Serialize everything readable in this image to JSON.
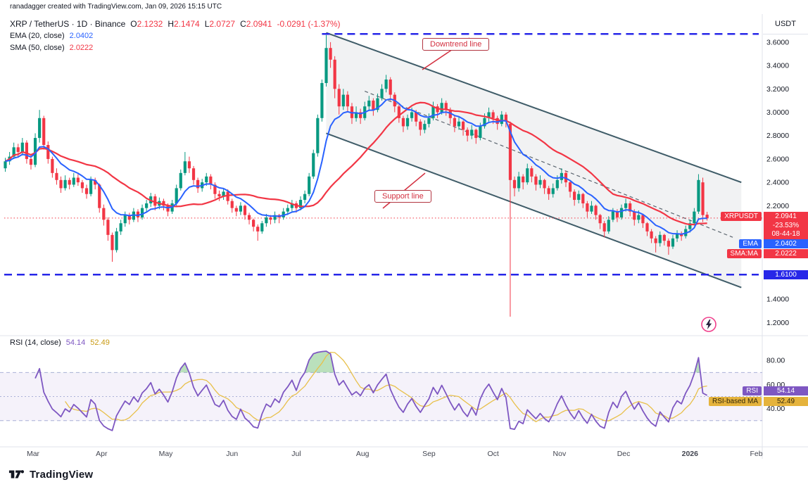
{
  "header": {
    "credit": "ranadagger created with TradingView.com, Jan 09, 2026 15:15 UTC"
  },
  "legend": {
    "symbol": "XRP / TetherUS · 1D · Binance",
    "ohlc": [
      {
        "k": "O",
        "v": "2.1232"
      },
      {
        "k": "H",
        "v": "2.1474"
      },
      {
        "k": "L",
        "v": "2.0727"
      },
      {
        "k": "C",
        "v": "2.0941"
      }
    ],
    "change": "-0.0291 (-1.37%)",
    "ema_label": "EMA (20, close)",
    "ema_value": "2.0402",
    "sma_label": "SMA (50, close)",
    "sma_value": "2.0222"
  },
  "rsi_legend": {
    "label": "RSI (14, close)",
    "v1": "54.14",
    "v2": "52.49"
  },
  "axis": {
    "currency": "USDT"
  },
  "badges": {
    "symbol": "XRPUSDT",
    "price": "2.0941",
    "change_pct": "-23.53%",
    "countdown": "08-44-18",
    "ema_label": "EMA",
    "ema": "2.0402",
    "sma_label": "SMA:MA",
    "sma": "2.0222",
    "level": "1.6100",
    "rsi_label": "RSI",
    "rsi": "54.14",
    "rsi_ma_label": "RSI-based MA",
    "rsi_ma": "52.49"
  },
  "annotations": {
    "downtrend": "Downtrend line",
    "support": "Support line"
  },
  "footer": {
    "brand": "TradingView"
  },
  "chart_data": {
    "type": "candlestick",
    "symbol": "XRPUSDT",
    "interval": "1D",
    "exchange": "Binance",
    "candles": [
      [
        2.52,
        2.61,
        2.49,
        2.58
      ],
      [
        2.58,
        2.66,
        2.55,
        2.62
      ],
      [
        2.62,
        2.74,
        2.6,
        2.7
      ],
      [
        2.7,
        2.73,
        2.61,
        2.66
      ],
      [
        2.66,
        2.78,
        2.63,
        2.74
      ],
      [
        2.74,
        2.76,
        2.56,
        2.6
      ],
      [
        2.6,
        2.64,
        2.51,
        2.55
      ],
      [
        2.55,
        2.82,
        2.53,
        2.78
      ],
      [
        2.78,
        3.02,
        2.74,
        2.95
      ],
      [
        2.95,
        2.97,
        2.68,
        2.72
      ],
      [
        2.72,
        2.75,
        2.56,
        2.6
      ],
      [
        2.6,
        2.62,
        2.44,
        2.48
      ],
      [
        2.48,
        2.52,
        2.38,
        2.42
      ],
      [
        2.42,
        2.45,
        2.31,
        2.35
      ],
      [
        2.35,
        2.46,
        2.33,
        2.42
      ],
      [
        2.42,
        2.44,
        2.34,
        2.38
      ],
      [
        2.38,
        2.48,
        2.36,
        2.44
      ],
      [
        2.44,
        2.47,
        2.37,
        2.4
      ],
      [
        2.4,
        2.42,
        2.31,
        2.35
      ],
      [
        2.35,
        2.38,
        2.26,
        2.3
      ],
      [
        2.3,
        2.45,
        2.28,
        2.42
      ],
      [
        2.42,
        2.44,
        2.34,
        2.38
      ],
      [
        2.38,
        2.39,
        2.14,
        2.18
      ],
      [
        2.18,
        2.21,
        2.03,
        2.08
      ],
      [
        2.08,
        2.1,
        1.9,
        1.95
      ],
      [
        1.95,
        1.97,
        1.72,
        1.82
      ],
      [
        1.82,
        2.01,
        1.8,
        1.98
      ],
      [
        1.98,
        2.08,
        1.95,
        2.05
      ],
      [
        2.05,
        2.15,
        2.02,
        2.12
      ],
      [
        2.12,
        2.14,
        2.04,
        2.08
      ],
      [
        2.08,
        2.18,
        2.06,
        2.15
      ],
      [
        2.15,
        2.17,
        2.06,
        2.1
      ],
      [
        2.1,
        2.21,
        2.08,
        2.18
      ],
      [
        2.18,
        2.25,
        2.15,
        2.22
      ],
      [
        2.22,
        2.31,
        2.19,
        2.28
      ],
      [
        2.28,
        2.3,
        2.16,
        2.2
      ],
      [
        2.2,
        2.27,
        2.17,
        2.24
      ],
      [
        2.24,
        2.26,
        2.16,
        2.2
      ],
      [
        2.2,
        2.22,
        2.11,
        2.15
      ],
      [
        2.15,
        2.25,
        2.13,
        2.22
      ],
      [
        2.22,
        2.38,
        2.2,
        2.35
      ],
      [
        2.35,
        2.51,
        2.33,
        2.48
      ],
      [
        2.48,
        2.66,
        2.46,
        2.58
      ],
      [
        2.58,
        2.62,
        2.48,
        2.52
      ],
      [
        2.52,
        2.54,
        2.38,
        2.42
      ],
      [
        2.42,
        2.44,
        2.31,
        2.35
      ],
      [
        2.35,
        2.43,
        2.32,
        2.4
      ],
      [
        2.4,
        2.48,
        2.37,
        2.45
      ],
      [
        2.45,
        2.47,
        2.34,
        2.38
      ],
      [
        2.38,
        2.4,
        2.26,
        2.3
      ],
      [
        2.3,
        2.33,
        2.24,
        2.28
      ],
      [
        2.28,
        2.35,
        2.25,
        2.32
      ],
      [
        2.32,
        2.34,
        2.21,
        2.24
      ],
      [
        2.24,
        2.26,
        2.14,
        2.18
      ],
      [
        2.18,
        2.2,
        2.11,
        2.15
      ],
      [
        2.15,
        2.23,
        2.12,
        2.2
      ],
      [
        2.2,
        2.21,
        2.08,
        2.12
      ],
      [
        2.12,
        2.14,
        2.04,
        2.08
      ],
      [
        2.08,
        2.09,
        1.98,
        2.02
      ],
      [
        2.02,
        2.04,
        1.9,
        1.98
      ],
      [
        1.98,
        2.07,
        1.96,
        2.05
      ],
      [
        2.05,
        2.13,
        2.02,
        2.1
      ],
      [
        2.1,
        2.12,
        2.04,
        2.08
      ],
      [
        2.08,
        2.15,
        2.05,
        2.12
      ],
      [
        2.12,
        2.13,
        2.05,
        2.1
      ],
      [
        2.1,
        2.18,
        2.08,
        2.15
      ],
      [
        2.15,
        2.21,
        2.12,
        2.18
      ],
      [
        2.18,
        2.25,
        2.15,
        2.22
      ],
      [
        2.22,
        2.24,
        2.14,
        2.18
      ],
      [
        2.18,
        2.28,
        2.16,
        2.25
      ],
      [
        2.25,
        2.33,
        2.22,
        2.3
      ],
      [
        2.3,
        2.48,
        2.28,
        2.45
      ],
      [
        2.45,
        2.68,
        2.43,
        2.65
      ],
      [
        2.65,
        2.98,
        2.62,
        2.95
      ],
      [
        2.95,
        3.28,
        2.92,
        3.25
      ],
      [
        3.25,
        3.66,
        3.22,
        3.55
      ],
      [
        3.55,
        3.6,
        3.38,
        3.45
      ],
      [
        3.45,
        3.48,
        3.12,
        3.2
      ],
      [
        3.2,
        3.24,
        2.98,
        3.05
      ],
      [
        3.05,
        3.2,
        3.02,
        3.15
      ],
      [
        3.15,
        3.18,
        3.0,
        3.05
      ],
      [
        3.05,
        3.08,
        2.9,
        2.95
      ],
      [
        2.95,
        3.05,
        2.92,
        3.0
      ],
      [
        3.0,
        3.03,
        2.9,
        2.95
      ],
      [
        2.95,
        3.09,
        2.93,
        3.05
      ],
      [
        3.05,
        3.14,
        3.01,
        3.1
      ],
      [
        3.1,
        3.12,
        2.97,
        3.02
      ],
      [
        3.02,
        3.16,
        3.0,
        3.12
      ],
      [
        3.12,
        3.24,
        3.1,
        3.2
      ],
      [
        3.2,
        3.32,
        3.17,
        3.28
      ],
      [
        3.28,
        3.3,
        3.1,
        3.15
      ],
      [
        3.15,
        3.17,
        3.0,
        3.05
      ],
      [
        3.05,
        3.07,
        2.91,
        2.95
      ],
      [
        2.95,
        2.97,
        2.83,
        2.88
      ],
      [
        2.88,
        2.98,
        2.85,
        2.95
      ],
      [
        2.95,
        3.04,
        2.92,
        3.0
      ],
      [
        3.0,
        3.02,
        2.88,
        2.92
      ],
      [
        2.92,
        2.94,
        2.8,
        2.85
      ],
      [
        2.85,
        2.93,
        2.82,
        2.9
      ],
      [
        2.9,
        2.99,
        2.87,
        2.95
      ],
      [
        2.95,
        3.09,
        2.93,
        3.05
      ],
      [
        3.05,
        3.07,
        2.95,
        3.0
      ],
      [
        3.0,
        3.12,
        2.98,
        3.08
      ],
      [
        3.08,
        3.1,
        2.97,
        3.02
      ],
      [
        3.02,
        3.04,
        2.9,
        2.95
      ],
      [
        2.95,
        2.97,
        2.83,
        2.88
      ],
      [
        2.88,
        2.96,
        2.85,
        2.92
      ],
      [
        2.92,
        2.93,
        2.8,
        2.85
      ],
      [
        2.85,
        2.87,
        2.75,
        2.8
      ],
      [
        2.8,
        2.89,
        2.77,
        2.85
      ],
      [
        2.85,
        2.86,
        2.73,
        2.78
      ],
      [
        2.78,
        2.91,
        2.76,
        2.88
      ],
      [
        2.88,
        2.99,
        2.86,
        2.95
      ],
      [
        2.95,
        3.04,
        2.92,
        3.0
      ],
      [
        3.0,
        3.02,
        2.9,
        2.95
      ],
      [
        2.95,
        2.97,
        2.85,
        2.9
      ],
      [
        2.9,
        3.01,
        2.88,
        2.98
      ],
      [
        2.98,
        3.0,
        2.87,
        2.92
      ],
      [
        2.9,
        2.92,
        1.25,
        2.42
      ],
      [
        2.42,
        2.45,
        2.28,
        2.35
      ],
      [
        2.35,
        2.49,
        2.32,
        2.45
      ],
      [
        2.45,
        2.47,
        2.34,
        2.4
      ],
      [
        2.4,
        2.56,
        2.38,
        2.52
      ],
      [
        2.52,
        2.54,
        2.4,
        2.45
      ],
      [
        2.45,
        2.47,
        2.33,
        2.38
      ],
      [
        2.38,
        2.46,
        2.35,
        2.42
      ],
      [
        2.42,
        2.43,
        2.3,
        2.35
      ],
      [
        2.35,
        2.37,
        2.25,
        2.3
      ],
      [
        2.3,
        2.39,
        2.27,
        2.35
      ],
      [
        2.35,
        2.46,
        2.33,
        2.42
      ],
      [
        2.42,
        2.52,
        2.39,
        2.48
      ],
      [
        2.48,
        2.5,
        2.36,
        2.4
      ],
      [
        2.4,
        2.42,
        2.27,
        2.32
      ],
      [
        2.32,
        2.34,
        2.2,
        2.25
      ],
      [
        2.25,
        2.33,
        2.22,
        2.3
      ],
      [
        2.3,
        2.31,
        2.18,
        2.22
      ],
      [
        2.22,
        2.24,
        2.1,
        2.15
      ],
      [
        2.15,
        2.24,
        2.13,
        2.2
      ],
      [
        2.2,
        2.21,
        2.08,
        2.12
      ],
      [
        2.12,
        2.13,
        2.0,
        2.05
      ],
      [
        2.05,
        2.07,
        1.93,
        1.98
      ],
      [
        1.98,
        2.11,
        1.96,
        2.08
      ],
      [
        2.08,
        2.18,
        2.06,
        2.15
      ],
      [
        2.15,
        2.17,
        2.06,
        2.1
      ],
      [
        2.1,
        2.21,
        2.08,
        2.18
      ],
      [
        2.18,
        2.26,
        2.15,
        2.22
      ],
      [
        2.22,
        2.24,
        2.11,
        2.15
      ],
      [
        2.15,
        2.17,
        2.03,
        2.08
      ],
      [
        2.08,
        2.16,
        2.05,
        2.12
      ],
      [
        2.12,
        2.13,
        2.01,
        2.05
      ],
      [
        2.05,
        2.06,
        1.94,
        1.98
      ],
      [
        1.98,
        2.0,
        1.88,
        1.92
      ],
      [
        1.92,
        1.94,
        1.8,
        1.88
      ],
      [
        1.88,
        1.98,
        1.85,
        1.95
      ],
      [
        1.95,
        1.96,
        1.86,
        1.9
      ],
      [
        1.9,
        1.92,
        1.78,
        1.85
      ],
      [
        1.85,
        1.95,
        1.83,
        1.92
      ],
      [
        1.92,
        1.99,
        1.89,
        1.96
      ],
      [
        1.96,
        1.98,
        1.9,
        1.94
      ],
      [
        1.94,
        2.03,
        1.92,
        2.0
      ],
      [
        2.0,
        2.08,
        1.97,
        2.05
      ],
      [
        2.05,
        2.18,
        2.03,
        2.15
      ],
      [
        2.15,
        2.47,
        2.13,
        2.42
      ],
      [
        2.4,
        2.44,
        2.06,
        2.12
      ],
      [
        2.1232,
        2.1474,
        2.0727,
        2.0941
      ]
    ],
    "x_labels": [
      {
        "t": "Mar",
        "i": 6.5
      },
      {
        "t": "Apr",
        "i": 22.5
      },
      {
        "t": "May",
        "i": 37.5
      },
      {
        "t": "Jun",
        "i": 53
      },
      {
        "t": "Jul",
        "i": 68
      },
      {
        "t": "Aug",
        "i": 83.5
      },
      {
        "t": "Sep",
        "i": 99
      },
      {
        "t": "Oct",
        "i": 114
      },
      {
        "t": "Nov",
        "i": 129.5
      },
      {
        "t": "Dec",
        "i": 144.5
      },
      {
        "t": "2026",
        "i": 160,
        "b": 1
      },
      {
        "t": "Feb",
        "i": 175.5
      }
    ],
    "price_axis": {
      "min": 1.16,
      "max": 3.78,
      "ticks": [
        3.6,
        3.4,
        3.2,
        3.0,
        2.8,
        2.6,
        2.4,
        2.2,
        1.4,
        1.2
      ]
    },
    "rsi_axis": {
      "min": 10,
      "max": 100,
      "ticks": [
        80,
        60,
        40
      ],
      "band": [
        30,
        70
      ],
      "mid": 50
    },
    "levels": {
      "resistance": 3.67,
      "support": 1.61,
      "last_price": 2.0941
    },
    "channel": {
      "i1": 75,
      "i2": 172,
      "u1": 3.68,
      "u2": 2.4,
      "l1": 2.82,
      "l2": 1.5
    },
    "inner_dashed": {
      "i1": 84,
      "p1": 3.18,
      "i2": 170,
      "p2": 1.93
    },
    "indicators": {
      "ema_period": 20,
      "sma_period": 50,
      "rsi_period": 14,
      "rsi_ma_period": 14,
      "ema_last": 2.0402,
      "sma_last": 2.0222,
      "rsi_last": 54.14,
      "rsi_ma_last": 52.49
    },
    "colors": {
      "up": "#089981",
      "down": "#f23645",
      "ema": "#2962ff",
      "sma": "#f23645",
      "blue_dashed": "#2727e8",
      "last_price": "#f23645",
      "channel": "#3f5c68",
      "channel_fill": "rgba(150,155,165,0.13)",
      "inner_dashed": "#5c6670",
      "rsi": "#7e57c2",
      "rsi_ma": "#e8c04a",
      "rsi_band_fill": "rgba(126,87,194,0.08)",
      "rsi_band_edge": "#aab0d8",
      "overbought_fill": "rgba(102,187,106,0.45)",
      "grid": "#e0e3eb",
      "axis_text": "#131722",
      "annotation": "#d32f3f"
    }
  }
}
